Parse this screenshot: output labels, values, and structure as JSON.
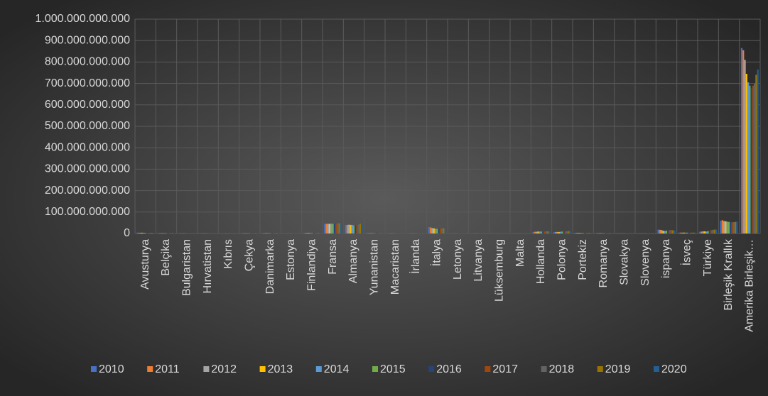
{
  "chart_data": {
    "type": "bar",
    "categories": [
      "Avusturya",
      "Belçika",
      "Bulgaristan",
      "Hırvatistan",
      "Kıbrıs",
      "Çekya",
      "Danimarka",
      "Estonya",
      "Finlandiya",
      "Fransa",
      "Almanya",
      "Yunanistan",
      "Macaristan",
      "İrlanda",
      "İtalya",
      "Letonya",
      "Litvanya",
      "Lüksemburg",
      "Malta",
      "Hollanda",
      "Polonya",
      "Portekiz",
      "Romanya",
      "Slovakya",
      "Slovenya",
      "ispanya",
      "İsveç",
      "Türkiye",
      "Birleşik Krallık",
      "Amerika Birleşik…"
    ],
    "series": [
      {
        "name": "2010",
        "color": "#4472c4",
        "values": [
          4000000000.0,
          1500000000.0,
          500000000.0,
          500000000.0,
          200000000.0,
          1000000000.0,
          1500000000.0,
          200000000.0,
          2500000000.0,
          46000000000.0,
          40000000000.0,
          2000000000.0,
          500000000.0,
          500000000.0,
          30000000000.0,
          200000000.0,
          300000000.0,
          200000000.0,
          100000000.0,
          7000000000.0,
          6000000000.0,
          3000000000.0,
          1500000000.0,
          500000000.0,
          300000000.0,
          18000000000.0,
          4000000000.0,
          8000000000.0,
          60000000000.0,
          865000000000.0
        ]
      },
      {
        "name": "2011",
        "color": "#ed7d31",
        "values": [
          3500000000.0,
          1500000000.0,
          500000000.0,
          500000000.0,
          200000000.0,
          1000000000.0,
          1500000000.0,
          200000000.0,
          2500000000.0,
          45000000000.0,
          40000000000.0,
          1500000000.0,
          500000000.0,
          500000000.0,
          28000000000.0,
          200000000.0,
          300000000.0,
          200000000.0,
          100000000.0,
          8000000000.0,
          7000000000.0,
          3000000000.0,
          1500000000.0,
          500000000.0,
          300000000.0,
          17000000000.0,
          4000000000.0,
          9000000000.0,
          62000000000.0,
          855000000000.0
        ]
      },
      {
        "name": "2012",
        "color": "#a5a5a5",
        "values": [
          3500000000.0,
          1500000000.0,
          500000000.0,
          500000000.0,
          200000000.0,
          1000000000.0,
          1500000000.0,
          200000000.0,
          2500000000.0,
          45000000000.0,
          41000000000.0,
          1500000000.0,
          500000000.0,
          500000000.0,
          25000000000.0,
          200000000.0,
          300000000.0,
          200000000.0,
          100000000.0,
          8000000000.0,
          7000000000.0,
          3000000000.0,
          1500000000.0,
          500000000.0,
          300000000.0,
          16000000000.0,
          4000000000.0,
          10000000000.0,
          58000000000.0,
          810000000000.0
        ]
      },
      {
        "name": "2013",
        "color": "#ffc000",
        "values": [
          3500000000.0,
          1500000000.0,
          500000000.0,
          500000000.0,
          200000000.0,
          1000000000.0,
          1500000000.0,
          200000000.0,
          2500000000.0,
          45000000000.0,
          40000000000.0,
          1500000000.0,
          500000000.0,
          500000000.0,
          24000000000.0,
          200000000.0,
          300000000.0,
          200000000.0,
          100000000.0,
          9000000000.0,
          7000000000.0,
          2500000000.0,
          1500000000.0,
          500000000.0,
          300000000.0,
          13000000000.0,
          4000000000.0,
          10000000000.0,
          57000000000.0,
          745000000000.0
        ]
      },
      {
        "name": "2014",
        "color": "#5b9bd5",
        "values": [
          3500000000.0,
          1500000000.0,
          500000000.0,
          500000000.0,
          200000000.0,
          1000000000.0,
          1500000000.0,
          200000000.0,
          2500000000.0,
          46000000000.0,
          40000000000.0,
          1500000000.0,
          500000000.0,
          500000000.0,
          22000000000.0,
          200000000.0,
          300000000.0,
          200000000.0,
          100000000.0,
          9000000000.0,
          8000000000.0,
          2500000000.0,
          1500000000.0,
          500000000.0,
          300000000.0,
          12000000000.0,
          4000000000.0,
          9000000000.0,
          55000000000.0,
          705000000000.0
        ]
      },
      {
        "name": "2015",
        "color": "#70ad47",
        "values": [
          3000000000.0,
          1500000000.0,
          500000000.0,
          500000000.0,
          200000000.0,
          1000000000.0,
          1500000000.0,
          200000000.0,
          2500000000.0,
          45000000000.0,
          38000000000.0,
          1500000000.0,
          500000000.0,
          500000000.0,
          22000000000.0,
          200000000.0,
          300000000.0,
          200000000.0,
          100000000.0,
          9000000000.0,
          9000000000.0,
          2500000000.0,
          1500000000.0,
          500000000.0,
          300000000.0,
          13000000000.0,
          4000000000.0,
          11000000000.0,
          54000000000.0,
          690000000000.0
        ]
      },
      {
        "name": "2016",
        "color": "#264478",
        "values": [
          3000000000.0,
          1500000000.0,
          500000000.0,
          500000000.0,
          200000000.0,
          1000000000.0,
          1500000000.0,
          200000000.0,
          2500000000.0,
          46000000000.0,
          38000000000.0,
          1500000000.0,
          500000000.0,
          500000000.0,
          23000000000.0,
          200000000.0,
          300000000.0,
          200000000.0,
          100000000.0,
          8000000000.0,
          8000000000.0,
          2500000000.0,
          1500000000.0,
          500000000.0,
          300000000.0,
          15000000000.0,
          4000000000.0,
          14000000000.0,
          53000000000.0,
          680000000000.0
        ]
      },
      {
        "name": "2017",
        "color": "#9e480e",
        "values": [
          3000000000.0,
          1500000000.0,
          500000000.0,
          500000000.0,
          200000000.0,
          1000000000.0,
          1500000000.0,
          200000000.0,
          2500000000.0,
          46000000000.0,
          40000000000.0,
          1500000000.0,
          500000000.0,
          500000000.0,
          23000000000.0,
          200000000.0,
          300000000.0,
          200000000.0,
          100000000.0,
          9000000000.0,
          9000000000.0,
          3000000000.0,
          1500000000.0,
          500000000.0,
          300000000.0,
          16000000000.0,
          4000000000.0,
          16000000000.0,
          52000000000.0,
          690000000000.0
        ]
      },
      {
        "name": "2018",
        "color": "#636363",
        "values": [
          3000000000.0,
          1500000000.0,
          500000000.0,
          500000000.0,
          200000000.0,
          1000000000.0,
          1500000000.0,
          200000000.0,
          2500000000.0,
          47000000000.0,
          42000000000.0,
          1500000000.0,
          500000000.0,
          500000000.0,
          24000000000.0,
          200000000.0,
          300000000.0,
          200000000.0,
          100000000.0,
          10000000000.0,
          10000000000.0,
          3000000000.0,
          1500000000.0,
          500000000.0,
          300000000.0,
          16000000000.0,
          4000000000.0,
          17000000000.0,
          53000000000.0,
          700000000000.0
        ]
      },
      {
        "name": "2019",
        "color": "#997300",
        "values": [
          3000000000.0,
          1500000000.0,
          500000000.0,
          500000000.0,
          200000000.0,
          1000000000.0,
          1500000000.0,
          200000000.0,
          2500000000.0,
          48000000000.0,
          45000000000.0,
          1500000000.0,
          500000000.0,
          500000000.0,
          24000000000.0,
          200000000.0,
          300000000.0,
          200000000.0,
          100000000.0,
          10000000000.0,
          11000000000.0,
          3000000000.0,
          1500000000.0,
          500000000.0,
          300000000.0,
          15000000000.0,
          4000000000.0,
          18000000000.0,
          54000000000.0,
          740000000000.0
        ]
      },
      {
        "name": "2020",
        "color": "#255e91",
        "values": [
          3000000000.0,
          1500000000.0,
          500000000.0,
          500000000.0,
          200000000.0,
          1000000000.0,
          1500000000.0,
          200000000.0,
          2500000000.0,
          46000000000.0,
          47000000000.0,
          1500000000.0,
          500000000.0,
          500000000.0,
          23000000000.0,
          200000000.0,
          300000000.0,
          200000000.0,
          100000000.0,
          10000000000.0,
          11000000000.0,
          3000000000.0,
          1500000000.0,
          500000000.0,
          300000000.0,
          14000000000.0,
          4000000000.0,
          18000000000.0,
          55000000000.0,
          765000000000.0
        ]
      }
    ],
    "ylim": [
      0,
      1000000000000
    ],
    "yticks": [
      0,
      {
        "value": 100000000000,
        "label": "100.000.000.000"
      },
      {
        "value": 200000000000,
        "label": "200.000.000.000"
      },
      {
        "value": 300000000000,
        "label": "300.000.000.000"
      },
      {
        "value": 400000000000,
        "label": "400.000.000.000"
      },
      {
        "value": 500000000000,
        "label": "500.000.000.000"
      },
      {
        "value": 600000000000,
        "label": "600.000.000.000"
      },
      {
        "value": 700000000000,
        "label": "700.000.000.000"
      },
      {
        "value": 800000000000,
        "label": "800.000.000.000"
      },
      {
        "value": 900000000000,
        "label": "900.000.000.000"
      },
      {
        "value": 1000000000000,
        "label": "1.000.000.000.000"
      }
    ],
    "grid": true,
    "legend": "bottom"
  }
}
